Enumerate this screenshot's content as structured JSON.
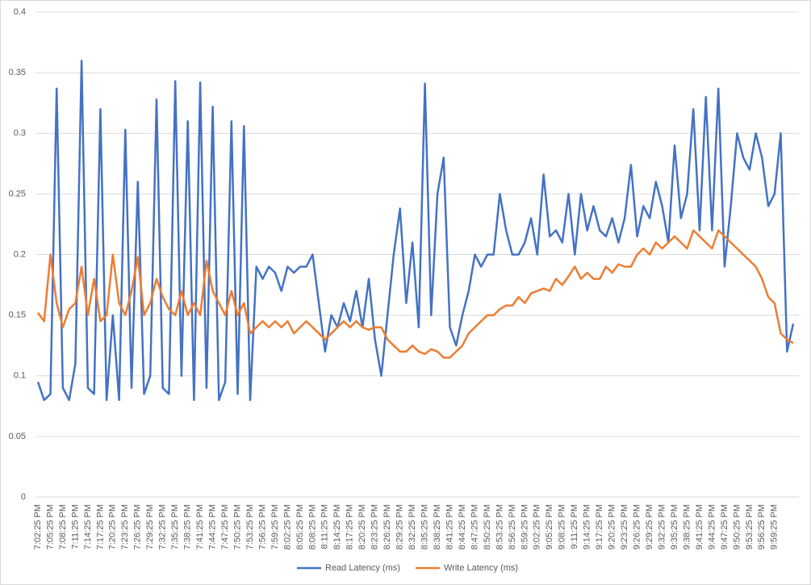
{
  "chart_data": {
    "type": "line",
    "categories": [
      "7:02:25 PM",
      null,
      "7:05:25 PM",
      null,
      "7:08:25 PM",
      null,
      "7:11:25 PM",
      null,
      "7:14:25 PM",
      null,
      "7:17:25 PM",
      null,
      "7:20:25 PM",
      null,
      "7:23:25 PM",
      null,
      "7:26:25 PM",
      null,
      "7:29:25 PM",
      null,
      "7:32:25 PM",
      null,
      "7:35:25 PM",
      null,
      "7:38:25 PM",
      null,
      "7:41:25 PM",
      null,
      "7:44:25 PM",
      null,
      "7:47:25 PM",
      null,
      "7:50:25 PM",
      null,
      "7:53:25 PM",
      null,
      "7:56:25 PM",
      null,
      "7:59:25 PM",
      null,
      "8:02:25 PM",
      null,
      "8:05:25 PM",
      null,
      "8:08:25 PM",
      null,
      "8:11:25 PM",
      null,
      "8:14:25 PM",
      null,
      "8:17:25 PM",
      null,
      "8:20:25 PM",
      null,
      "8:23:25 PM",
      null,
      "8:26:25 PM",
      null,
      "8:29:25 PM",
      null,
      "8:32:25 PM",
      null,
      "8:35:25 PM",
      null,
      "8:38:25 PM",
      null,
      "8:41:25 PM",
      null,
      "8:44:25 PM",
      null,
      "8:47:25 PM",
      null,
      "8:50:25 PM",
      null,
      "8:53:25 PM",
      null,
      "8:56:25 PM",
      null,
      "8:59:25 PM",
      null,
      "9:02:25 PM",
      null,
      "9:05:25 PM",
      null,
      "9:08:25 PM",
      null,
      "9:11:25 PM",
      null,
      "9:14:25 PM",
      null,
      "9:17:25 PM",
      null,
      "9:20:25 PM",
      null,
      "9:23:25 PM",
      null,
      "9:26:25 PM",
      null,
      "9:29:25 PM",
      null,
      "9:32:25 PM",
      null,
      "9:35:25 PM",
      null,
      "9:38:25 PM",
      null,
      "9:41:25 PM",
      null,
      "9:44:25 PM",
      null,
      "9:47:25 PM",
      null,
      "9:50:25 PM",
      null,
      "9:53:25 PM",
      null,
      "9:56:25 PM",
      null,
      "9:59:25 PM",
      null,
      null,
      null
    ],
    "series": [
      {
        "name": "Read Latency (ms)",
        "color": "#4472c4",
        "values": [
          0.095,
          0.08,
          0.085,
          0.337,
          0.09,
          0.08,
          0.11,
          0.36,
          0.09,
          0.085,
          0.32,
          0.08,
          0.15,
          0.08,
          0.303,
          0.09,
          0.26,
          0.085,
          0.1,
          0.328,
          0.09,
          0.085,
          0.343,
          0.1,
          0.31,
          0.08,
          0.342,
          0.09,
          0.322,
          0.08,
          0.095,
          0.31,
          0.085,
          0.306,
          0.08,
          0.19,
          0.18,
          0.19,
          0.185,
          0.17,
          0.19,
          0.185,
          0.19,
          0.19,
          0.2,
          0.16,
          0.12,
          0.15,
          0.14,
          0.16,
          0.145,
          0.17,
          0.14,
          0.18,
          0.13,
          0.1,
          0.15,
          0.2,
          0.238,
          0.16,
          0.21,
          0.14,
          0.341,
          0.15,
          0.25,
          0.28,
          0.14,
          0.125,
          0.15,
          0.17,
          0.2,
          0.19,
          0.2,
          0.2,
          0.25,
          0.22,
          0.2,
          0.2,
          0.21,
          0.23,
          0.2,
          0.266,
          0.215,
          0.22,
          0.21,
          0.25,
          0.2,
          0.25,
          0.22,
          0.24,
          0.22,
          0.215,
          0.23,
          0.21,
          0.23,
          0.274,
          0.215,
          0.24,
          0.23,
          0.26,
          0.24,
          0.21,
          0.29,
          0.23,
          0.25,
          0.32,
          0.22,
          0.33,
          0.22,
          0.337,
          0.19,
          0.24,
          0.3,
          0.28,
          0.27,
          0.3,
          0.28,
          0.24,
          0.25,
          0.3,
          0.12,
          0.143
        ]
      },
      {
        "name": "Write Latency (ms)",
        "color": "#ed7d31",
        "values": [
          0.152,
          0.145,
          0.2,
          0.16,
          0.14,
          0.155,
          0.16,
          0.19,
          0.15,
          0.18,
          0.145,
          0.15,
          0.2,
          0.16,
          0.15,
          0.17,
          0.198,
          0.15,
          0.16,
          0.18,
          0.165,
          0.155,
          0.15,
          0.17,
          0.15,
          0.16,
          0.15,
          0.195,
          0.17,
          0.16,
          0.15,
          0.17,
          0.15,
          0.16,
          0.135,
          0.14,
          0.145,
          0.14,
          0.145,
          0.14,
          0.145,
          0.135,
          0.14,
          0.145,
          0.14,
          0.135,
          0.13,
          0.135,
          0.14,
          0.145,
          0.14,
          0.145,
          0.14,
          0.138,
          0.14,
          0.14,
          0.13,
          0.125,
          0.12,
          0.12,
          0.125,
          0.12,
          0.118,
          0.122,
          0.12,
          0.115,
          0.115,
          0.12,
          0.125,
          0.135,
          0.14,
          0.145,
          0.15,
          0.15,
          0.155,
          0.158,
          0.158,
          0.165,
          0.16,
          0.168,
          0.17,
          0.172,
          0.17,
          0.18,
          0.175,
          0.182,
          0.19,
          0.18,
          0.185,
          0.18,
          0.18,
          0.19,
          0.185,
          0.192,
          0.19,
          0.19,
          0.2,
          0.205,
          0.2,
          0.21,
          0.205,
          0.21,
          0.215,
          0.21,
          0.205,
          0.22,
          0.215,
          0.21,
          0.205,
          0.22,
          0.215,
          0.21,
          0.205,
          0.2,
          0.195,
          0.19,
          0.18,
          0.165,
          0.16,
          0.135,
          0.13,
          0.127
        ]
      }
    ],
    "ylim": [
      0,
      0.4
    ],
    "yticks": [
      0,
      0.05,
      0.1,
      0.15,
      0.2,
      0.25,
      0.3,
      0.35,
      0.4
    ],
    "grid": true,
    "legend": "bottom"
  }
}
